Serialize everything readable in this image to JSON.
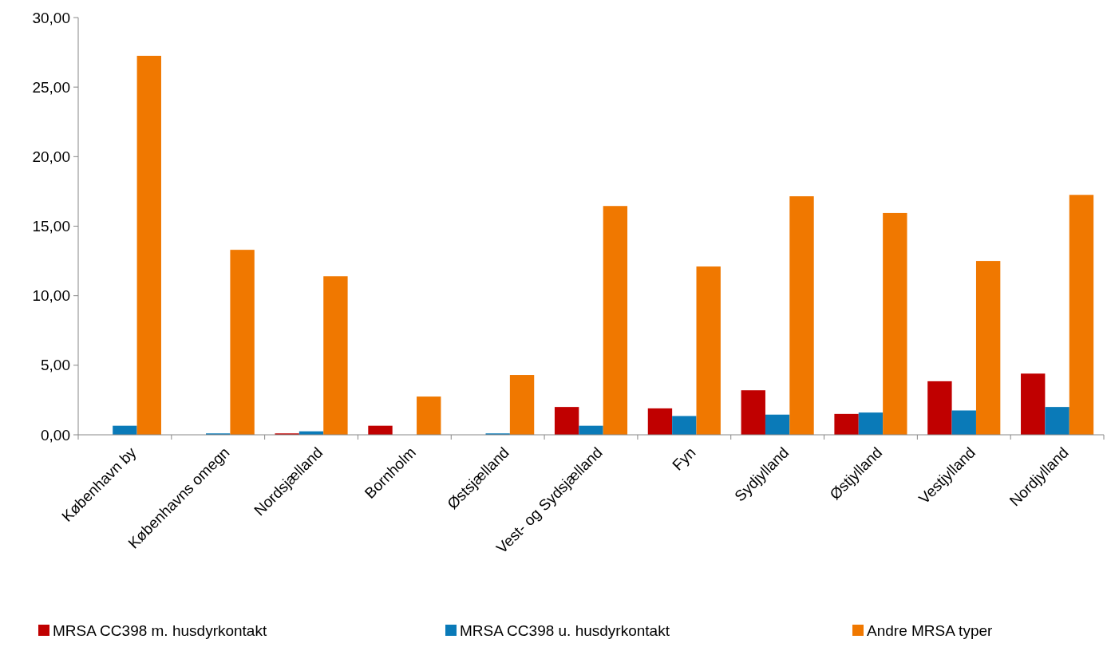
{
  "chart_data": {
    "type": "bar",
    "categories": [
      "København by",
      "Københavns omegn",
      "Nordsjælland",
      "Bornholm",
      "Østsjælland",
      "Vest- og Sydsjælland",
      "Fyn",
      "Sydjylland",
      "Østjylland",
      "Vestjylland",
      "Nordjylland"
    ],
    "series": [
      {
        "name": "MRSA CC398 m. husdyrkontakt",
        "color": "#c00000",
        "values": [
          0,
          0,
          0.1,
          0.65,
          0,
          2.0,
          1.9,
          3.2,
          1.5,
          3.85,
          4.4
        ]
      },
      {
        "name": "MRSA CC398 u. husdyrkontakt",
        "color": "#0a7ab8",
        "values": [
          0.65,
          0.1,
          0.25,
          0,
          0.1,
          0.65,
          1.35,
          1.45,
          1.6,
          1.75,
          2.0
        ]
      },
      {
        "name": "Andre MRSA typer",
        "color": "#f07800",
        "values": [
          27.25,
          13.3,
          11.4,
          2.75,
          4.3,
          16.45,
          12.1,
          17.15,
          15.95,
          12.5,
          17.25
        ]
      }
    ],
    "ylim": [
      0,
      30
    ],
    "yticks": [
      {
        "value": 0,
        "label": "0,00"
      },
      {
        "value": 5,
        "label": "5,00"
      },
      {
        "value": 10,
        "label": "10,00"
      },
      {
        "value": 15,
        "label": "15,00"
      },
      {
        "value": 20,
        "label": "20,00"
      },
      {
        "value": 25,
        "label": "25,00"
      },
      {
        "value": 30,
        "label": "30,00"
      }
    ],
    "grid": false,
    "legend": "bottom"
  }
}
